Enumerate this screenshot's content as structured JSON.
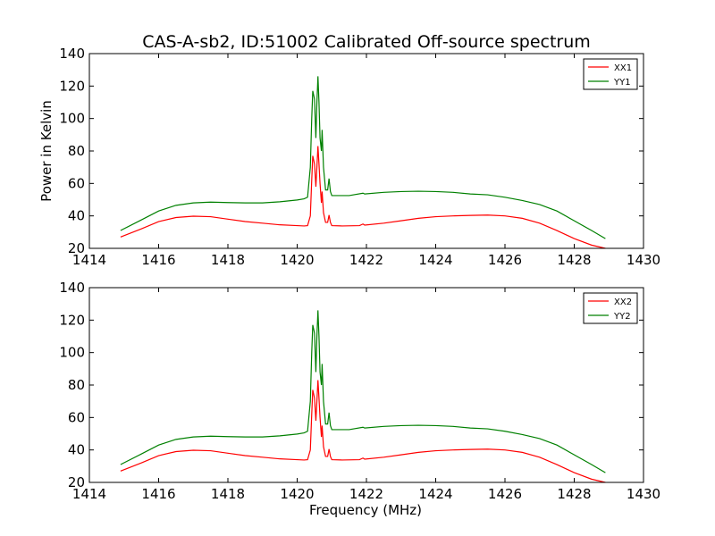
{
  "figure": {
    "title": "CAS-A-sb2, ID:51002 Calibrated Off-source spectrum"
  },
  "chart_data": [
    {
      "type": "line",
      "title": "CAS-A-sb2, ID:51002 Calibrated Off-source spectrum",
      "xlabel": "",
      "ylabel": "Power in Kelvin",
      "xlim": [
        1414,
        1430
      ],
      "ylim": [
        20,
        140
      ],
      "xticks": [
        "1414",
        "1416",
        "1418",
        "1420",
        "1422",
        "1424",
        "1426",
        "1428",
        "1430"
      ],
      "yticks": [
        "20",
        "40",
        "60",
        "80",
        "100",
        "120",
        "140"
      ],
      "grid": false,
      "legend": "top-right",
      "series": [
        {
          "name": "XX1",
          "color": "#ff0000",
          "points": [
            [
              1414.9,
              27
            ],
            [
              1415.5,
              32
            ],
            [
              1416.0,
              36.5
            ],
            [
              1416.5,
              39
            ],
            [
              1417.0,
              39.8
            ],
            [
              1417.5,
              39.5
            ],
            [
              1418.0,
              38
            ],
            [
              1418.5,
              36.5
            ],
            [
              1419.0,
              35.5
            ],
            [
              1419.5,
              34.5
            ],
            [
              1420.0,
              34
            ],
            [
              1420.2,
              33.8
            ],
            [
              1420.3,
              34
            ],
            [
              1420.38,
              40
            ],
            [
              1420.42,
              62
            ],
            [
              1420.45,
              77
            ],
            [
              1420.5,
              72
            ],
            [
              1420.54,
              58
            ],
            [
              1420.57,
              70
            ],
            [
              1420.6,
              83
            ],
            [
              1420.63,
              72
            ],
            [
              1420.66,
              60
            ],
            [
              1420.7,
              48
            ],
            [
              1420.72,
              55
            ],
            [
              1420.76,
              42
            ],
            [
              1420.82,
              36
            ],
            [
              1420.88,
              36
            ],
            [
              1420.92,
              40.5
            ],
            [
              1420.96,
              36
            ],
            [
              1421.0,
              34
            ],
            [
              1421.3,
              33.8
            ],
            [
              1421.8,
              34
            ],
            [
              1421.9,
              35
            ],
            [
              1421.95,
              34.3
            ],
            [
              1422.5,
              35.5
            ],
            [
              1423.0,
              37
            ],
            [
              1423.5,
              38.5
            ],
            [
              1424.0,
              39.5
            ],
            [
              1424.5,
              40
            ],
            [
              1425.0,
              40.3
            ],
            [
              1425.5,
              40.5
            ],
            [
              1426.0,
              40
            ],
            [
              1426.5,
              38.5
            ],
            [
              1427.0,
              35.5
            ],
            [
              1427.5,
              31
            ],
            [
              1428.0,
              26
            ],
            [
              1428.5,
              22
            ],
            [
              1428.9,
              20
            ]
          ]
        },
        {
          "name": "YY1",
          "color": "#008000",
          "points": [
            [
              1414.9,
              31
            ],
            [
              1415.5,
              37.5
            ],
            [
              1416.0,
              43
            ],
            [
              1416.5,
              46.5
            ],
            [
              1417.0,
              48
            ],
            [
              1417.5,
              48.5
            ],
            [
              1418.0,
              48.2
            ],
            [
              1418.5,
              48
            ],
            [
              1419.0,
              48
            ],
            [
              1419.5,
              48.7
            ],
            [
              1420.0,
              49.8
            ],
            [
              1420.2,
              50.5
            ],
            [
              1420.3,
              51.5
            ],
            [
              1420.38,
              70
            ],
            [
              1420.42,
              100
            ],
            [
              1420.45,
              117
            ],
            [
              1420.5,
              112
            ],
            [
              1420.54,
              88
            ],
            [
              1420.57,
              110
            ],
            [
              1420.6,
              126
            ],
            [
              1420.63,
              110
            ],
            [
              1420.66,
              88
            ],
            [
              1420.7,
              80
            ],
            [
              1420.72,
              93
            ],
            [
              1420.76,
              70
            ],
            [
              1420.82,
              56
            ],
            [
              1420.88,
              56
            ],
            [
              1420.92,
              63
            ],
            [
              1420.96,
              55
            ],
            [
              1421.0,
              52.5
            ],
            [
              1421.5,
              52.5
            ],
            [
              1421.9,
              54
            ],
            [
              1421.95,
              53.5
            ],
            [
              1422.5,
              54.5
            ],
            [
              1423.0,
              55
            ],
            [
              1423.5,
              55.2
            ],
            [
              1424.0,
              55
            ],
            [
              1424.5,
              54.5
            ],
            [
              1425.0,
              53.5
            ],
            [
              1425.5,
              53
            ],
            [
              1426.0,
              51.5
            ],
            [
              1426.5,
              49.5
            ],
            [
              1427.0,
              47
            ],
            [
              1427.5,
              43
            ],
            [
              1428.0,
              37
            ],
            [
              1428.5,
              31
            ],
            [
              1428.9,
              26
            ]
          ]
        }
      ]
    },
    {
      "type": "line",
      "title": "",
      "xlabel": "Frequency (MHz)",
      "ylabel": "",
      "xlim": [
        1414,
        1430
      ],
      "ylim": [
        20,
        140
      ],
      "xticks": [
        "1414",
        "1416",
        "1418",
        "1420",
        "1422",
        "1424",
        "1426",
        "1428",
        "1430"
      ],
      "yticks": [
        "20",
        "40",
        "60",
        "80",
        "100",
        "120",
        "140"
      ],
      "grid": false,
      "legend": "top-right",
      "series": [
        {
          "name": "XX2",
          "color": "#ff0000",
          "points": [
            [
              1414.9,
              27
            ],
            [
              1415.5,
              32
            ],
            [
              1416.0,
              36.5
            ],
            [
              1416.5,
              39
            ],
            [
              1417.0,
              39.8
            ],
            [
              1417.5,
              39.5
            ],
            [
              1418.0,
              38
            ],
            [
              1418.5,
              36.5
            ],
            [
              1419.0,
              35.5
            ],
            [
              1419.5,
              34.5
            ],
            [
              1420.0,
              34
            ],
            [
              1420.2,
              33.8
            ],
            [
              1420.3,
              34
            ],
            [
              1420.38,
              40
            ],
            [
              1420.42,
              62
            ],
            [
              1420.45,
              77
            ],
            [
              1420.5,
              72
            ],
            [
              1420.54,
              58
            ],
            [
              1420.57,
              70
            ],
            [
              1420.6,
              83
            ],
            [
              1420.63,
              72
            ],
            [
              1420.66,
              60
            ],
            [
              1420.7,
              48
            ],
            [
              1420.72,
              55
            ],
            [
              1420.76,
              42
            ],
            [
              1420.82,
              36
            ],
            [
              1420.88,
              36
            ],
            [
              1420.92,
              40.5
            ],
            [
              1420.96,
              36
            ],
            [
              1421.0,
              34
            ],
            [
              1421.3,
              33.8
            ],
            [
              1421.8,
              34
            ],
            [
              1421.9,
              35
            ],
            [
              1421.95,
              34.3
            ],
            [
              1422.5,
              35.5
            ],
            [
              1423.0,
              37
            ],
            [
              1423.5,
              38.5
            ],
            [
              1424.0,
              39.5
            ],
            [
              1424.5,
              40
            ],
            [
              1425.0,
              40.3
            ],
            [
              1425.5,
              40.5
            ],
            [
              1426.0,
              40
            ],
            [
              1426.5,
              38.5
            ],
            [
              1427.0,
              35.5
            ],
            [
              1427.5,
              31
            ],
            [
              1428.0,
              26
            ],
            [
              1428.5,
              22
            ],
            [
              1428.9,
              20
            ]
          ]
        },
        {
          "name": "YY2",
          "color": "#008000",
          "points": [
            [
              1414.9,
              31
            ],
            [
              1415.5,
              37.5
            ],
            [
              1416.0,
              43
            ],
            [
              1416.5,
              46.5
            ],
            [
              1417.0,
              48
            ],
            [
              1417.5,
              48.5
            ],
            [
              1418.0,
              48.2
            ],
            [
              1418.5,
              48
            ],
            [
              1419.0,
              48
            ],
            [
              1419.5,
              48.7
            ],
            [
              1420.0,
              49.8
            ],
            [
              1420.2,
              50.5
            ],
            [
              1420.3,
              51.5
            ],
            [
              1420.38,
              70
            ],
            [
              1420.42,
              100
            ],
            [
              1420.45,
              117
            ],
            [
              1420.5,
              112
            ],
            [
              1420.54,
              88
            ],
            [
              1420.57,
              110
            ],
            [
              1420.6,
              126
            ],
            [
              1420.63,
              110
            ],
            [
              1420.66,
              88
            ],
            [
              1420.7,
              80
            ],
            [
              1420.72,
              93
            ],
            [
              1420.76,
              70
            ],
            [
              1420.82,
              56
            ],
            [
              1420.88,
              56
            ],
            [
              1420.92,
              63
            ],
            [
              1420.96,
              55
            ],
            [
              1421.0,
              52.5
            ],
            [
              1421.5,
              52.5
            ],
            [
              1421.9,
              54
            ],
            [
              1421.95,
              53.5
            ],
            [
              1422.5,
              54.5
            ],
            [
              1423.0,
              55
            ],
            [
              1423.5,
              55.2
            ],
            [
              1424.0,
              55
            ],
            [
              1424.5,
              54.5
            ],
            [
              1425.0,
              53.5
            ],
            [
              1425.5,
              53
            ],
            [
              1426.0,
              51.5
            ],
            [
              1426.5,
              49.5
            ],
            [
              1427.0,
              47
            ],
            [
              1427.5,
              43
            ],
            [
              1428.0,
              37
            ],
            [
              1428.5,
              31
            ],
            [
              1428.9,
              26
            ]
          ]
        }
      ]
    }
  ]
}
